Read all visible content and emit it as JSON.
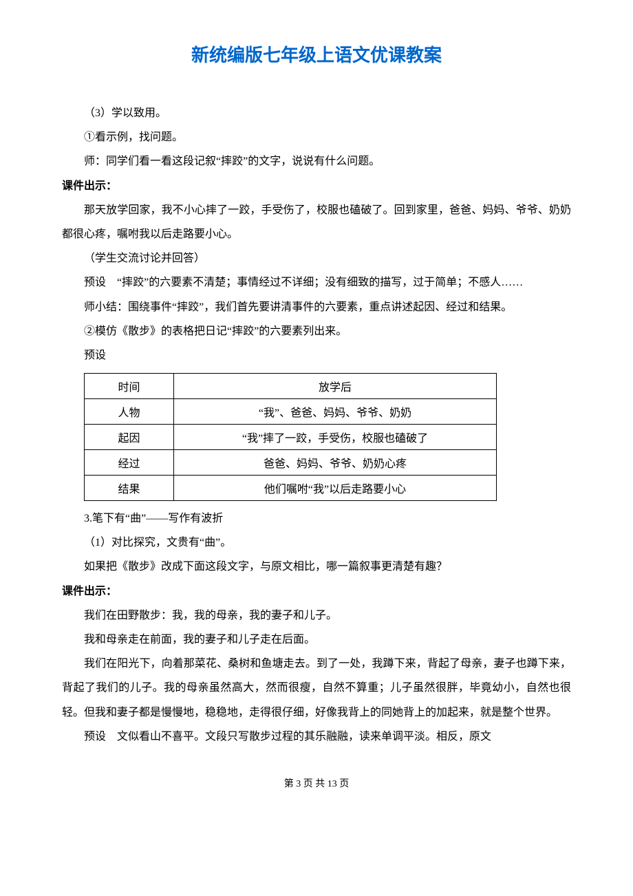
{
  "title": "新统编版七年级上语文优课教案",
  "body": {
    "p1": "（3）学以致用。",
    "p2": "①看示例，找问题。",
    "p3": "师：同学们看一看这段记叙“摔跤”的文字，说说有什么问题。",
    "label1": "课件出示：",
    "p4": "那天放学回家，我不小心摔了一跤，手受伤了，校服也磕破了。回到家里，爸爸、妈妈、爷爷、奶奶都很心疼，嘱咐我以后走路要小心。",
    "p5": "（学生交流讨论并回答）",
    "p6": "预设　“摔跤”的六要素不清楚；事情经过不详细；没有细致的描写，过于简单；不感人……",
    "p7": "师小结：围绕事件“摔跤”，我们首先要讲清事件的六要素，重点讲述起因、经过和结果。",
    "p8": "②模仿《散步》的表格把日记“摔跤”的六要素列出来。",
    "p9": "预设",
    "table": {
      "rows": [
        [
          "时间",
          "放学后"
        ],
        [
          "人物",
          "“我”、爸爸、妈妈、爷爷、奶奶"
        ],
        [
          "起因",
          "“我”摔了一跤，手受伤，校服也磕破了"
        ],
        [
          "经过",
          "爸爸、妈妈、爷爷、奶奶心疼"
        ],
        [
          "结果",
          "他们嘱咐“我”以后走路要小心"
        ]
      ]
    },
    "p10": "3.笔下有“曲”——写作有波折",
    "p11": "（1）对比探究，文贵有“曲”。",
    "p12": "如果把《散步》改成下面这段文字，与原文相比，哪一篇叙事更清楚有趣？",
    "label2": "课件出示：",
    "p13": "我们在田野散步：我，我的母亲，我的妻子和儿子。",
    "p14": "我和母亲走在前面，我的妻子和儿子走在后面。",
    "p15": "我们在阳光下，向着那菜花、桑树和鱼塘走去。到了一处，我蹲下来，背起了母亲，妻子也蹲下来，背起了我们的儿子。我的母亲虽然高大，然而很瘦，自然不算重；儿子虽然很胖，毕竟幼小，自然也很轻。但我和妻子都是慢慢地，稳稳地，走得很仔细，好像我背上的同她背上的加起来，就是整个世界。",
    "p16": "预设　文似看山不喜平。文段只写散步过程的其乐融融，读来单调平淡。相反，原文"
  },
  "footer": "第 3 页 共 13 页"
}
